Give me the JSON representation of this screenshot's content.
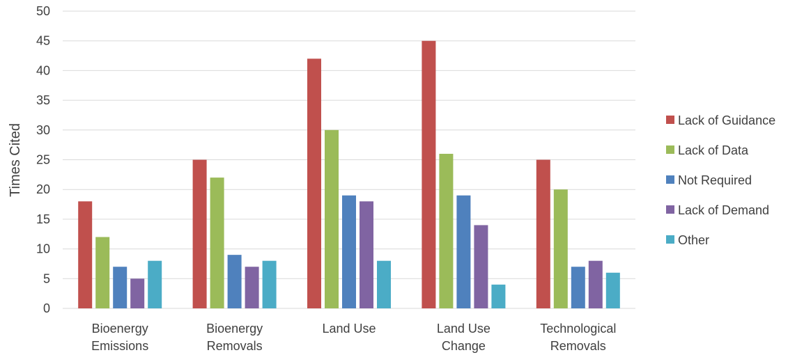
{
  "chart_data": {
    "type": "bar",
    "title": "",
    "xlabel": "",
    "ylabel": "Times Cited",
    "ylim": [
      0,
      50
    ],
    "yticks": [
      0,
      5,
      10,
      15,
      20,
      25,
      30,
      35,
      40,
      45,
      50
    ],
    "grid": true,
    "legend_position": "right",
    "categories": [
      [
        "Bioenergy",
        "Emissions"
      ],
      [
        "Bioenergy",
        "Removals"
      ],
      [
        "Land Use"
      ],
      [
        "Land Use",
        "Change"
      ],
      [
        "Technological",
        "Removals"
      ]
    ],
    "series": [
      {
        "name": "Lack of Guidance",
        "color": "#c0504d",
        "values": [
          18,
          25,
          42,
          45,
          25
        ]
      },
      {
        "name": "Lack of Data",
        "color": "#9bbb59",
        "values": [
          12,
          22,
          30,
          26,
          20
        ]
      },
      {
        "name": "Not Required",
        "color": "#4f81bd",
        "values": [
          7,
          9,
          19,
          19,
          7
        ]
      },
      {
        "name": "Lack of Demand",
        "color": "#8064a2",
        "values": [
          5,
          7,
          18,
          14,
          8
        ]
      },
      {
        "name": "Other",
        "color": "#4bacc6",
        "values": [
          8,
          8,
          8,
          4,
          6
        ]
      }
    ]
  }
}
